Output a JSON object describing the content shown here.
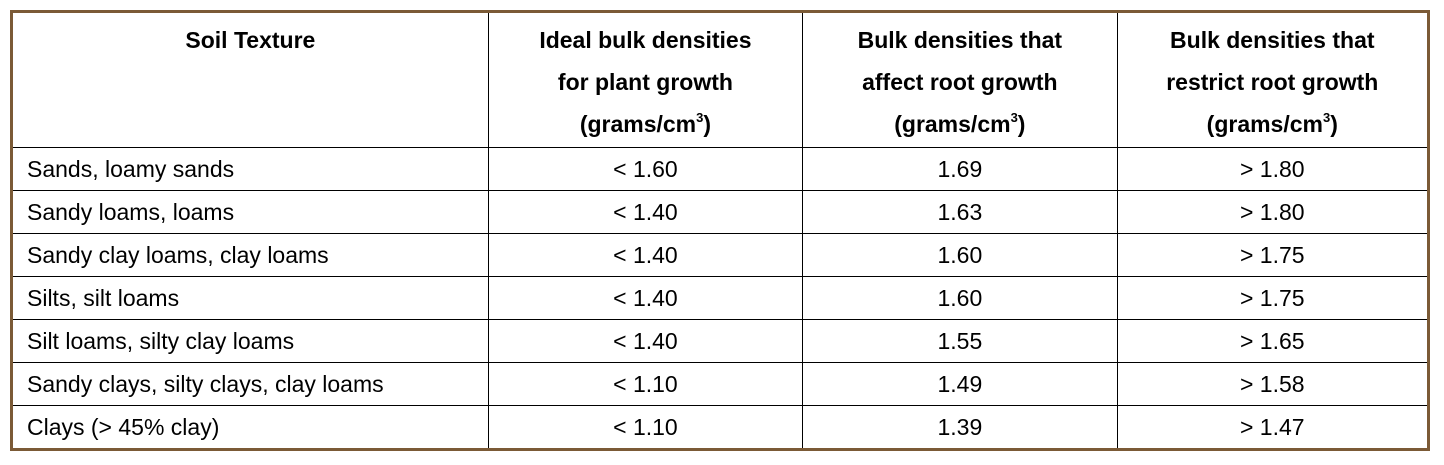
{
  "table": {
    "header": [
      {
        "lines": [
          "Soil Texture"
        ]
      },
      {
        "lines": [
          "Ideal bulk densities",
          "for plant growth"
        ],
        "unit": "(grams/cm",
        "exp": "3",
        "close": ")"
      },
      {
        "lines": [
          "Bulk densities that",
          "affect root growth"
        ],
        "unit": "(grams/cm",
        "exp": "3",
        "close": ")"
      },
      {
        "lines": [
          "Bulk densities that",
          "restrict root growth"
        ],
        "unit": "(grams/cm",
        "exp": "3",
        "close": ")"
      }
    ],
    "rows": [
      [
        "Sands, loamy sands",
        "< 1.60",
        "1.69",
        "> 1.80"
      ],
      [
        "Sandy loams, loams",
        "< 1.40",
        "1.63",
        "> 1.80"
      ],
      [
        "Sandy clay loams, clay loams",
        "< 1.40",
        "1.60",
        "> 1.75"
      ],
      [
        "Silts, silt loams",
        "< 1.40",
        "1.60",
        "> 1.75"
      ],
      [
        "Silt loams, silty clay loams",
        "< 1.40",
        "1.55",
        "> 1.65"
      ],
      [
        "Sandy clays, silty clays, clay loams",
        "< 1.10",
        "1.49",
        "> 1.58"
      ],
      [
        "Clays (> 45% clay)",
        "< 1.10",
        "1.39",
        "> 1.47"
      ]
    ]
  }
}
